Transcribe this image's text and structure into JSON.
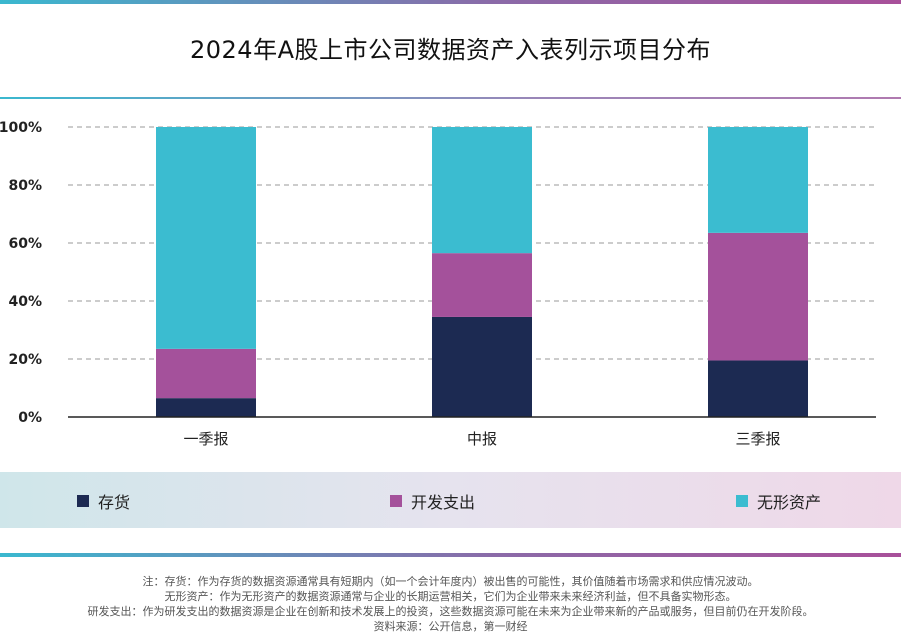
{
  "title": "2024年A股上市公司数据资产入表列示项目分布",
  "colors": {
    "存货": "#1c2a52",
    "开发支出": "#a4519b",
    "无形资产": "#3bbcd0"
  },
  "chart_data": {
    "type": "bar",
    "stacked": true,
    "categories": [
      "一季报",
      "中报",
      "三季报"
    ],
    "series": [
      {
        "name": "存货",
        "values": [
          6.5,
          34.5,
          19.5
        ]
      },
      {
        "name": "开发支出",
        "values": [
          17,
          22,
          44
        ]
      },
      {
        "name": "无形资产",
        "values": [
          76.5,
          43.5,
          36.5
        ]
      }
    ],
    "ylim": [
      0,
      100
    ],
    "yticks": [
      "0%",
      "20%",
      "40%",
      "60%",
      "80%",
      "100%"
    ],
    "grid": true,
    "legend": "bottom"
  },
  "legend": [
    "存货",
    "开发支出",
    "无形资产"
  ],
  "notes": [
    "注：存货：作为存货的数据资源通常具有短期内（如一个会计年度内）被出售的可能性，其价值随着市场需求和供应情况波动。",
    "无形资产：作为无形资产的数据资源通常与企业的长期运营相关，它们为企业带来未来经济利益，但不具备实物形态。",
    "研发支出：作为研发支出的数据资源是企业在创新和技术发展上的投资，这些数据资源可能在未来为企业带来新的产品或服务，但目前仍在开发阶段。",
    "资料来源：公开信息，第一财经"
  ]
}
